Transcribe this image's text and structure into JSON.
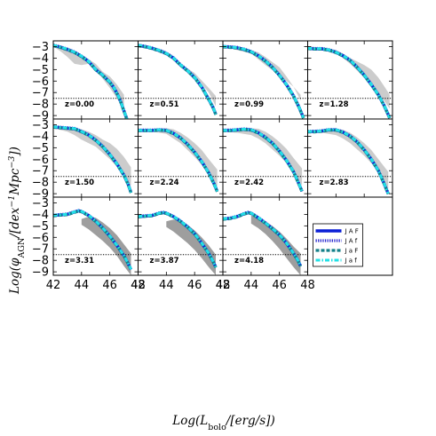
{
  "figure": {
    "xlabel": "Log(L_bolo/[erg/s])",
    "ylabel": "Log(φ_AGN/[dex^-1 Mpc^-3])"
  },
  "colors": {
    "band_light": "#cccccc",
    "band_dark": "#9e9e9e",
    "reference_line": "#000000"
  },
  "chart_data": {
    "type": "line",
    "layout": "4x3 grid of panels with shared axes",
    "xlim": [
      42,
      48
    ],
    "ylim": [
      -9.3,
      -2.5
    ],
    "xticks": [
      42,
      44,
      46,
      48
    ],
    "yticks": [
      -3,
      -4,
      -5,
      -6,
      -7,
      -8,
      -9
    ],
    "grid": false,
    "reference_line_y": -7.5,
    "legend_placement": "lower-right empty panel",
    "legend": [
      {
        "label": "J A F",
        "color": "#0a1fd6",
        "style": "solid"
      },
      {
        "label": "J A f",
        "color": "#2b2bd0",
        "style": "dotted"
      },
      {
        "label": "J a F",
        "color": "#14808a",
        "style": "dashed"
      },
      {
        "label": "J a f",
        "color": "#22e0e6",
        "style": "dashdot"
      }
    ],
    "panels": [
      {
        "label": "z=0.00",
        "x": [
          42.0,
          42.5,
          43.0,
          43.5,
          44.0,
          44.5,
          45.0,
          45.5,
          46.0,
          46.3,
          46.6,
          46.8,
          47.0,
          47.2
        ],
        "y": [
          -2.9,
          -3.05,
          -3.25,
          -3.5,
          -3.85,
          -4.3,
          -5.0,
          -5.5,
          -6.1,
          -6.6,
          -7.3,
          -7.9,
          -8.6,
          -9.3
        ],
        "band_upper_x": [
          42.0,
          43.0,
          44.0,
          45.0,
          45.5,
          46.0,
          46.5,
          47.0
        ],
        "band_upper_y": [
          -2.9,
          -3.2,
          -3.7,
          -4.5,
          -5.2,
          -5.6,
          -6.3,
          -7.2
        ],
        "band_lower_x": [
          42.0,
          42.5,
          43.0,
          43.5,
          44.0,
          44.5,
          45.0,
          46.0,
          47.0
        ],
        "band_lower_y": [
          -3.0,
          -3.4,
          -3.9,
          -4.5,
          -4.6,
          -4.5,
          -5.0,
          -6.6,
          -8.4
        ]
      },
      {
        "label": "z=0.51",
        "x": [
          42.0,
          42.5,
          43.0,
          43.5,
          44.0,
          44.5,
          45.0,
          45.5,
          46.0,
          46.5,
          47.0,
          47.3,
          47.5
        ],
        "y": [
          -2.9,
          -3.0,
          -3.15,
          -3.35,
          -3.6,
          -4.0,
          -4.6,
          -5.1,
          -5.7,
          -6.5,
          -7.6,
          -8.3,
          -8.9
        ],
        "band_upper_x": [
          42.0,
          43.0,
          44.0,
          45.0,
          46.0,
          47.0,
          47.5
        ],
        "band_upper_y": [
          -2.9,
          -3.1,
          -3.6,
          -4.5,
          -5.3,
          -6.6,
          -7.3
        ],
        "band_lower_x": [
          42.0,
          43.0,
          43.5,
          44.0,
          44.5,
          45.0,
          45.5,
          46.0,
          47.0,
          47.5
        ],
        "band_lower_y": [
          -3.0,
          -3.3,
          -3.5,
          -3.7,
          -4.1,
          -4.5,
          -4.9,
          -5.5,
          -7.0,
          -8.2
        ]
      },
      {
        "label": "z=0.99",
        "x": [
          42.0,
          42.5,
          43.0,
          43.5,
          44.0,
          44.5,
          45.0,
          45.5,
          46.0,
          46.5,
          47.0,
          47.4,
          47.7
        ],
        "y": [
          -3.0,
          -3.05,
          -3.1,
          -3.25,
          -3.45,
          -3.8,
          -4.25,
          -4.8,
          -5.5,
          -6.3,
          -7.3,
          -8.3,
          -9.2
        ],
        "band_upper_x": [
          42.0,
          43.0,
          44.0,
          44.5,
          45.0,
          46.0,
          46.5,
          47.0,
          47.5
        ],
        "band_upper_y": [
          -3.0,
          -3.0,
          -3.3,
          -3.5,
          -3.9,
          -4.8,
          -5.6,
          -6.5,
          -7.2
        ],
        "band_lower_x": [
          42.0,
          43.0,
          44.0,
          44.5,
          45.0,
          46.0,
          47.0,
          47.5
        ],
        "band_lower_y": [
          -3.0,
          -3.3,
          -3.6,
          -4.1,
          -4.6,
          -5.5,
          -6.5,
          -7.7
        ]
      },
      {
        "label": "z=1.28",
        "x": [
          42.0,
          42.5,
          43.0,
          43.5,
          44.0,
          44.5,
          45.0,
          45.5,
          46.0,
          46.5,
          47.0,
          47.4,
          47.8
        ],
        "y": [
          -3.15,
          -3.2,
          -3.2,
          -3.3,
          -3.5,
          -3.8,
          -4.2,
          -4.8,
          -5.5,
          -6.3,
          -7.2,
          -8.1,
          -9.2
        ],
        "band_upper_x": [
          42.0,
          43.0,
          44.0,
          44.5,
          45.0,
          45.5,
          46.0,
          46.5,
          47.0,
          47.5,
          47.8
        ],
        "band_upper_y": [
          -3.1,
          -3.1,
          -3.3,
          -3.6,
          -4.0,
          -4.3,
          -4.6,
          -5.0,
          -5.7,
          -6.6,
          -7.2
        ],
        "band_lower_x": [
          42.0,
          43.0,
          44.0,
          44.5,
          45.0,
          46.0,
          47.0,
          47.8
        ],
        "band_lower_y": [
          -3.2,
          -3.3,
          -3.6,
          -4.0,
          -4.5,
          -5.7,
          -7.0,
          -8.4
        ]
      },
      {
        "label": "z=1.50",
        "x": [
          42.0,
          42.5,
          43.0,
          43.5,
          44.0,
          44.5,
          45.0,
          45.5,
          46.0,
          46.5,
          47.0,
          47.3,
          47.5
        ],
        "y": [
          -3.2,
          -3.25,
          -3.3,
          -3.35,
          -3.6,
          -3.9,
          -4.35,
          -4.9,
          -5.6,
          -6.4,
          -7.4,
          -8.2,
          -8.9
        ],
        "band_upper_x": [
          42.0,
          43.0,
          44.0,
          44.5,
          45.0,
          45.5,
          46.0,
          46.5,
          47.0,
          47.5
        ],
        "band_upper_y": [
          -3.2,
          -3.2,
          -3.4,
          -3.6,
          -3.9,
          -4.3,
          -4.6,
          -5.1,
          -5.8,
          -6.7
        ],
        "band_lower_x": [
          42.0,
          43.0,
          43.5,
          44.0,
          44.5,
          45.0,
          46.0,
          47.0,
          47.5
        ],
        "band_lower_y": [
          -3.3,
          -3.6,
          -3.9,
          -4.3,
          -4.6,
          -4.9,
          -6.0,
          -7.3,
          -8.3
        ]
      },
      {
        "label": "z=2.24",
        "x": [
          42.0,
          42.5,
          43.0,
          43.5,
          44.0,
          44.5,
          45.0,
          45.5,
          46.0,
          46.5,
          47.0,
          47.4,
          47.6
        ],
        "y": [
          -3.5,
          -3.5,
          -3.5,
          -3.45,
          -3.5,
          -3.75,
          -4.15,
          -4.7,
          -5.4,
          -6.2,
          -7.2,
          -8.2,
          -8.8
        ],
        "band_upper_x": [
          42.0,
          43.0,
          44.0,
          44.5,
          45.0,
          45.5,
          46.0,
          46.5,
          47.0,
          47.6
        ],
        "band_upper_y": [
          -3.4,
          -3.4,
          -3.3,
          -3.4,
          -3.7,
          -4.1,
          -4.6,
          -5.2,
          -6.0,
          -6.9
        ],
        "band_lower_x": [
          42.0,
          43.0,
          44.0,
          44.5,
          45.0,
          46.0,
          47.0,
          47.6
        ],
        "band_lower_y": [
          -3.5,
          -3.6,
          -3.8,
          -4.2,
          -4.6,
          -5.8,
          -7.2,
          -8.4
        ]
      },
      {
        "label": "z=2.42",
        "x": [
          42.0,
          42.5,
          43.0,
          43.5,
          44.0,
          44.5,
          45.0,
          45.5,
          46.0,
          46.5,
          47.0,
          47.4,
          47.6
        ],
        "y": [
          -3.5,
          -3.5,
          -3.45,
          -3.4,
          -3.45,
          -3.7,
          -4.1,
          -4.6,
          -5.3,
          -6.1,
          -7.1,
          -8.2,
          -8.8
        ],
        "band_upper_x": [
          42.0,
          43.0,
          44.0,
          44.5,
          45.0,
          45.5,
          46.0,
          46.5,
          47.0,
          47.6
        ],
        "band_upper_y": [
          -3.4,
          -3.4,
          -3.3,
          -3.35,
          -3.6,
          -4.0,
          -4.5,
          -5.1,
          -5.9,
          -6.8
        ],
        "band_lower_x": [
          42.0,
          43.0,
          44.0,
          44.5,
          45.0,
          46.0,
          47.0,
          47.6
        ],
        "band_lower_y": [
          -3.6,
          -3.7,
          -3.9,
          -4.2,
          -4.6,
          -5.7,
          -7.0,
          -8.3
        ]
      },
      {
        "label": "z=2.83",
        "x": [
          42.0,
          42.5,
          43.0,
          43.5,
          44.0,
          44.5,
          45.0,
          45.5,
          46.0,
          46.5,
          47.0,
          47.4,
          47.7
        ],
        "y": [
          -3.6,
          -3.6,
          -3.55,
          -3.45,
          -3.45,
          -3.65,
          -4.0,
          -4.5,
          -5.2,
          -6.0,
          -7.0,
          -8.1,
          -9.0
        ],
        "band_upper_x": [
          42.0,
          43.0,
          44.0,
          44.5,
          45.0,
          45.5,
          46.0,
          46.5,
          47.0,
          47.7
        ],
        "band_upper_y": [
          -3.5,
          -3.5,
          -3.4,
          -3.45,
          -3.7,
          -4.1,
          -4.6,
          -5.2,
          -6.0,
          -7.1
        ],
        "band_lower_x": [
          42.0,
          43.0,
          44.0,
          44.5,
          45.0,
          46.0,
          47.0,
          47.7
        ],
        "band_lower_y": [
          -3.6,
          -3.7,
          -3.9,
          -4.2,
          -4.6,
          -5.7,
          -7.0,
          -8.6
        ]
      },
      {
        "label": "z=3.31",
        "x": [
          42.0,
          42.5,
          43.0,
          43.5,
          43.8,
          44.0,
          44.5,
          45.0,
          45.5,
          46.0,
          46.5,
          47.0,
          47.3,
          47.5
        ],
        "y": [
          -4.1,
          -4.05,
          -4.0,
          -3.8,
          -3.7,
          -3.75,
          -4.1,
          -4.6,
          -5.2,
          -5.9,
          -6.7,
          -7.6,
          -8.3,
          -8.8
        ],
        "band_upper_x": [
          44.0,
          44.5,
          45.0,
          45.5,
          46.0,
          46.5,
          47.0,
          47.5
        ],
        "band_upper_y": [
          -4.4,
          -4.2,
          -4.3,
          -4.7,
          -5.2,
          -5.8,
          -6.6,
          -7.4
        ],
        "band_lower_x": [
          44.0,
          44.5,
          45.0,
          45.5,
          46.0,
          46.5,
          47.0,
          47.5
        ],
        "band_lower_y": [
          -4.9,
          -5.3,
          -5.8,
          -6.3,
          -6.9,
          -7.6,
          -8.5,
          -9.3
        ]
      },
      {
        "label": "z=3.87",
        "x": [
          42.0,
          42.5,
          43.0,
          43.5,
          43.8,
          44.0,
          44.5,
          45.0,
          45.5,
          46.0,
          46.5,
          47.0,
          47.3,
          47.5
        ],
        "y": [
          -4.2,
          -4.15,
          -4.1,
          -3.9,
          -3.85,
          -3.9,
          -4.2,
          -4.6,
          -5.1,
          -5.7,
          -6.5,
          -7.4,
          -8.1,
          -8.6
        ],
        "band_upper_x": [
          44.0,
          44.5,
          45.0,
          45.5,
          46.0,
          46.5,
          47.0,
          47.5
        ],
        "band_upper_y": [
          -4.6,
          -4.45,
          -4.6,
          -4.9,
          -5.4,
          -6.0,
          -6.7,
          -7.5
        ],
        "band_lower_x": [
          44.0,
          44.5,
          45.0,
          45.5,
          46.0,
          46.5,
          47.0,
          47.5
        ],
        "band_lower_y": [
          -5.1,
          -5.5,
          -6.0,
          -6.5,
          -7.1,
          -7.8,
          -8.6,
          -9.3
        ]
      },
      {
        "label": "z=4.18",
        "x": [
          42.0,
          42.5,
          43.0,
          43.5,
          43.8,
          44.0,
          44.5,
          45.0,
          45.5,
          46.0,
          46.5,
          47.0,
          47.3,
          47.5
        ],
        "y": [
          -4.4,
          -4.35,
          -4.2,
          -3.95,
          -3.85,
          -3.9,
          -4.3,
          -4.75,
          -5.25,
          -5.8,
          -6.5,
          -7.4,
          -8.0,
          -8.5
        ],
        "band_upper_x": [
          44.0,
          44.5,
          45.0,
          45.5,
          46.0,
          46.5,
          47.0,
          47.5
        ],
        "band_upper_y": [
          -4.1,
          -4.3,
          -4.6,
          -5.0,
          -5.5,
          -6.1,
          -6.8,
          -7.4
        ],
        "band_lower_x": [
          44.0,
          44.5,
          45.0,
          45.5,
          46.0,
          46.5,
          47.0,
          47.5
        ],
        "band_lower_y": [
          -4.8,
          -5.2,
          -5.7,
          -6.3,
          -7.0,
          -7.8,
          -8.6,
          -9.3
        ]
      }
    ]
  }
}
